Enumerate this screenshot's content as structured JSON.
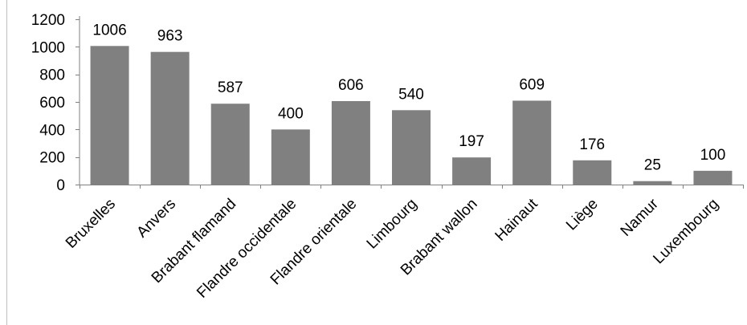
{
  "chart_data": {
    "type": "bar",
    "title": "",
    "xlabel": "",
    "ylabel": "",
    "categories": [
      "Bruxelles",
      "Anvers",
      "Brabant flamand",
      "Flandre occidentale",
      "Flandre orientale",
      "Limbourg",
      "Brabant wallon",
      "Hainaut",
      "Liège",
      "Namur",
      "Luxembourg"
    ],
    "values": [
      1006,
      963,
      587,
      400,
      606,
      540,
      197,
      609,
      176,
      25,
      100
    ],
    "value_labels": [
      "1006",
      "963",
      "587",
      "400",
      "606",
      "540",
      "197",
      "609",
      "176",
      "25",
      "100"
    ],
    "ylim": [
      0,
      1200
    ],
    "yticks": [
      0,
      200,
      400,
      600,
      800,
      1000,
      1200
    ],
    "ytick_labels": [
      "0",
      "200",
      "400",
      "600",
      "800",
      "1000",
      "1200"
    ],
    "grid": false,
    "legend": "none",
    "bar_color": "#808080"
  }
}
